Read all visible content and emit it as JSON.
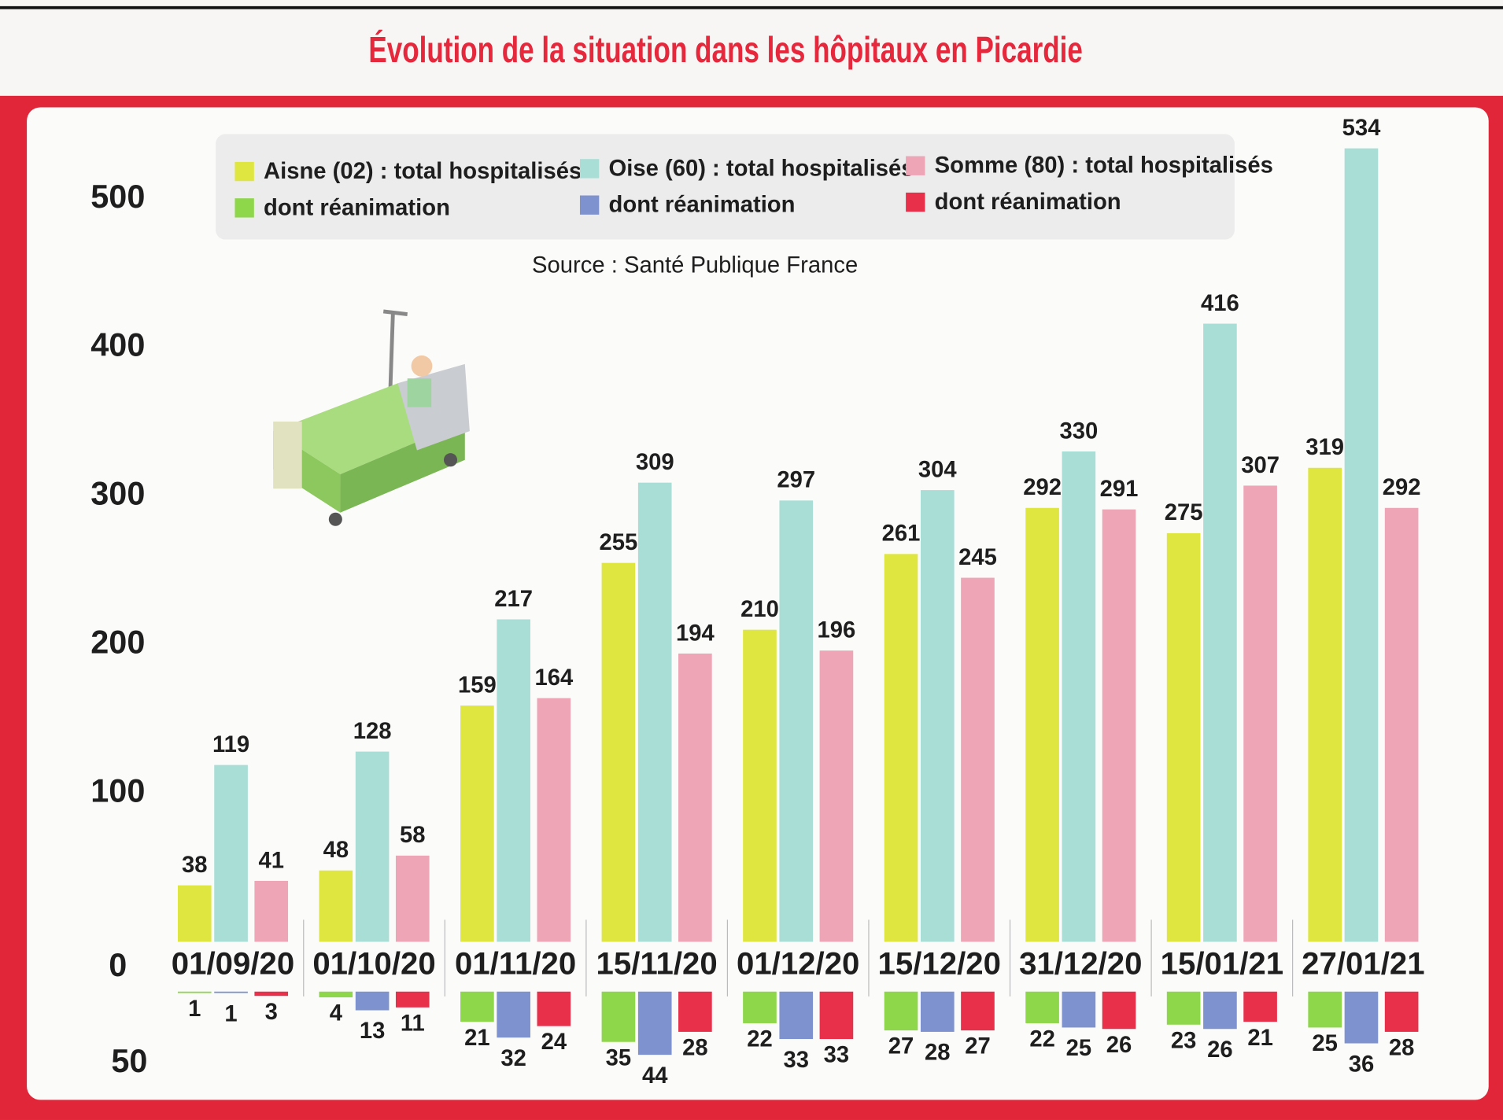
{
  "chart_data": {
    "type": "bar",
    "title": "Évolution de la situation dans les hôpitaux en Picardie",
    "source": "Source : Santé Publique France",
    "categories": [
      "01/09/20",
      "01/10/20",
      "01/11/20",
      "15/11/20",
      "01/12/20",
      "15/12/20",
      "31/12/20",
      "15/01/21",
      "27/01/21"
    ],
    "series": [
      {
        "name": "Aisne (02) : total hospitalisés",
        "color": "#dfe63f",
        "values": [
          38,
          48,
          159,
          255,
          210,
          261,
          292,
          275,
          319
        ]
      },
      {
        "name": "Oise (60) : total hospitalisés",
        "color": "#a9ded6",
        "values": [
          119,
          128,
          217,
          309,
          297,
          304,
          330,
          416,
          534
        ]
      },
      {
        "name": "Somme (80) : total hospitalisés",
        "color": "#eea5b6",
        "values": [
          41,
          58,
          164,
          194,
          196,
          245,
          291,
          307,
          292
        ]
      },
      {
        "name": "dont réanimation",
        "color": "#8ed64a",
        "axis": "y2",
        "values": [
          1,
          4,
          21,
          35,
          22,
          27,
          22,
          23,
          25
        ]
      },
      {
        "name": "dont réanimation",
        "color": "#7e92d0",
        "axis": "y2",
        "values": [
          1,
          13,
          32,
          44,
          33,
          28,
          25,
          26,
          36
        ]
      },
      {
        "name": "dont réanimation",
        "color": "#e8304b",
        "axis": "y2",
        "values": [
          3,
          11,
          24,
          28,
          33,
          27,
          26,
          21,
          28
        ]
      }
    ],
    "ylim": [
      0,
      550
    ],
    "yticks": [
      0,
      100,
      200,
      300,
      400,
      500
    ],
    "y2lim": [
      0,
      50
    ],
    "y2ticks": [
      50
    ]
  }
}
